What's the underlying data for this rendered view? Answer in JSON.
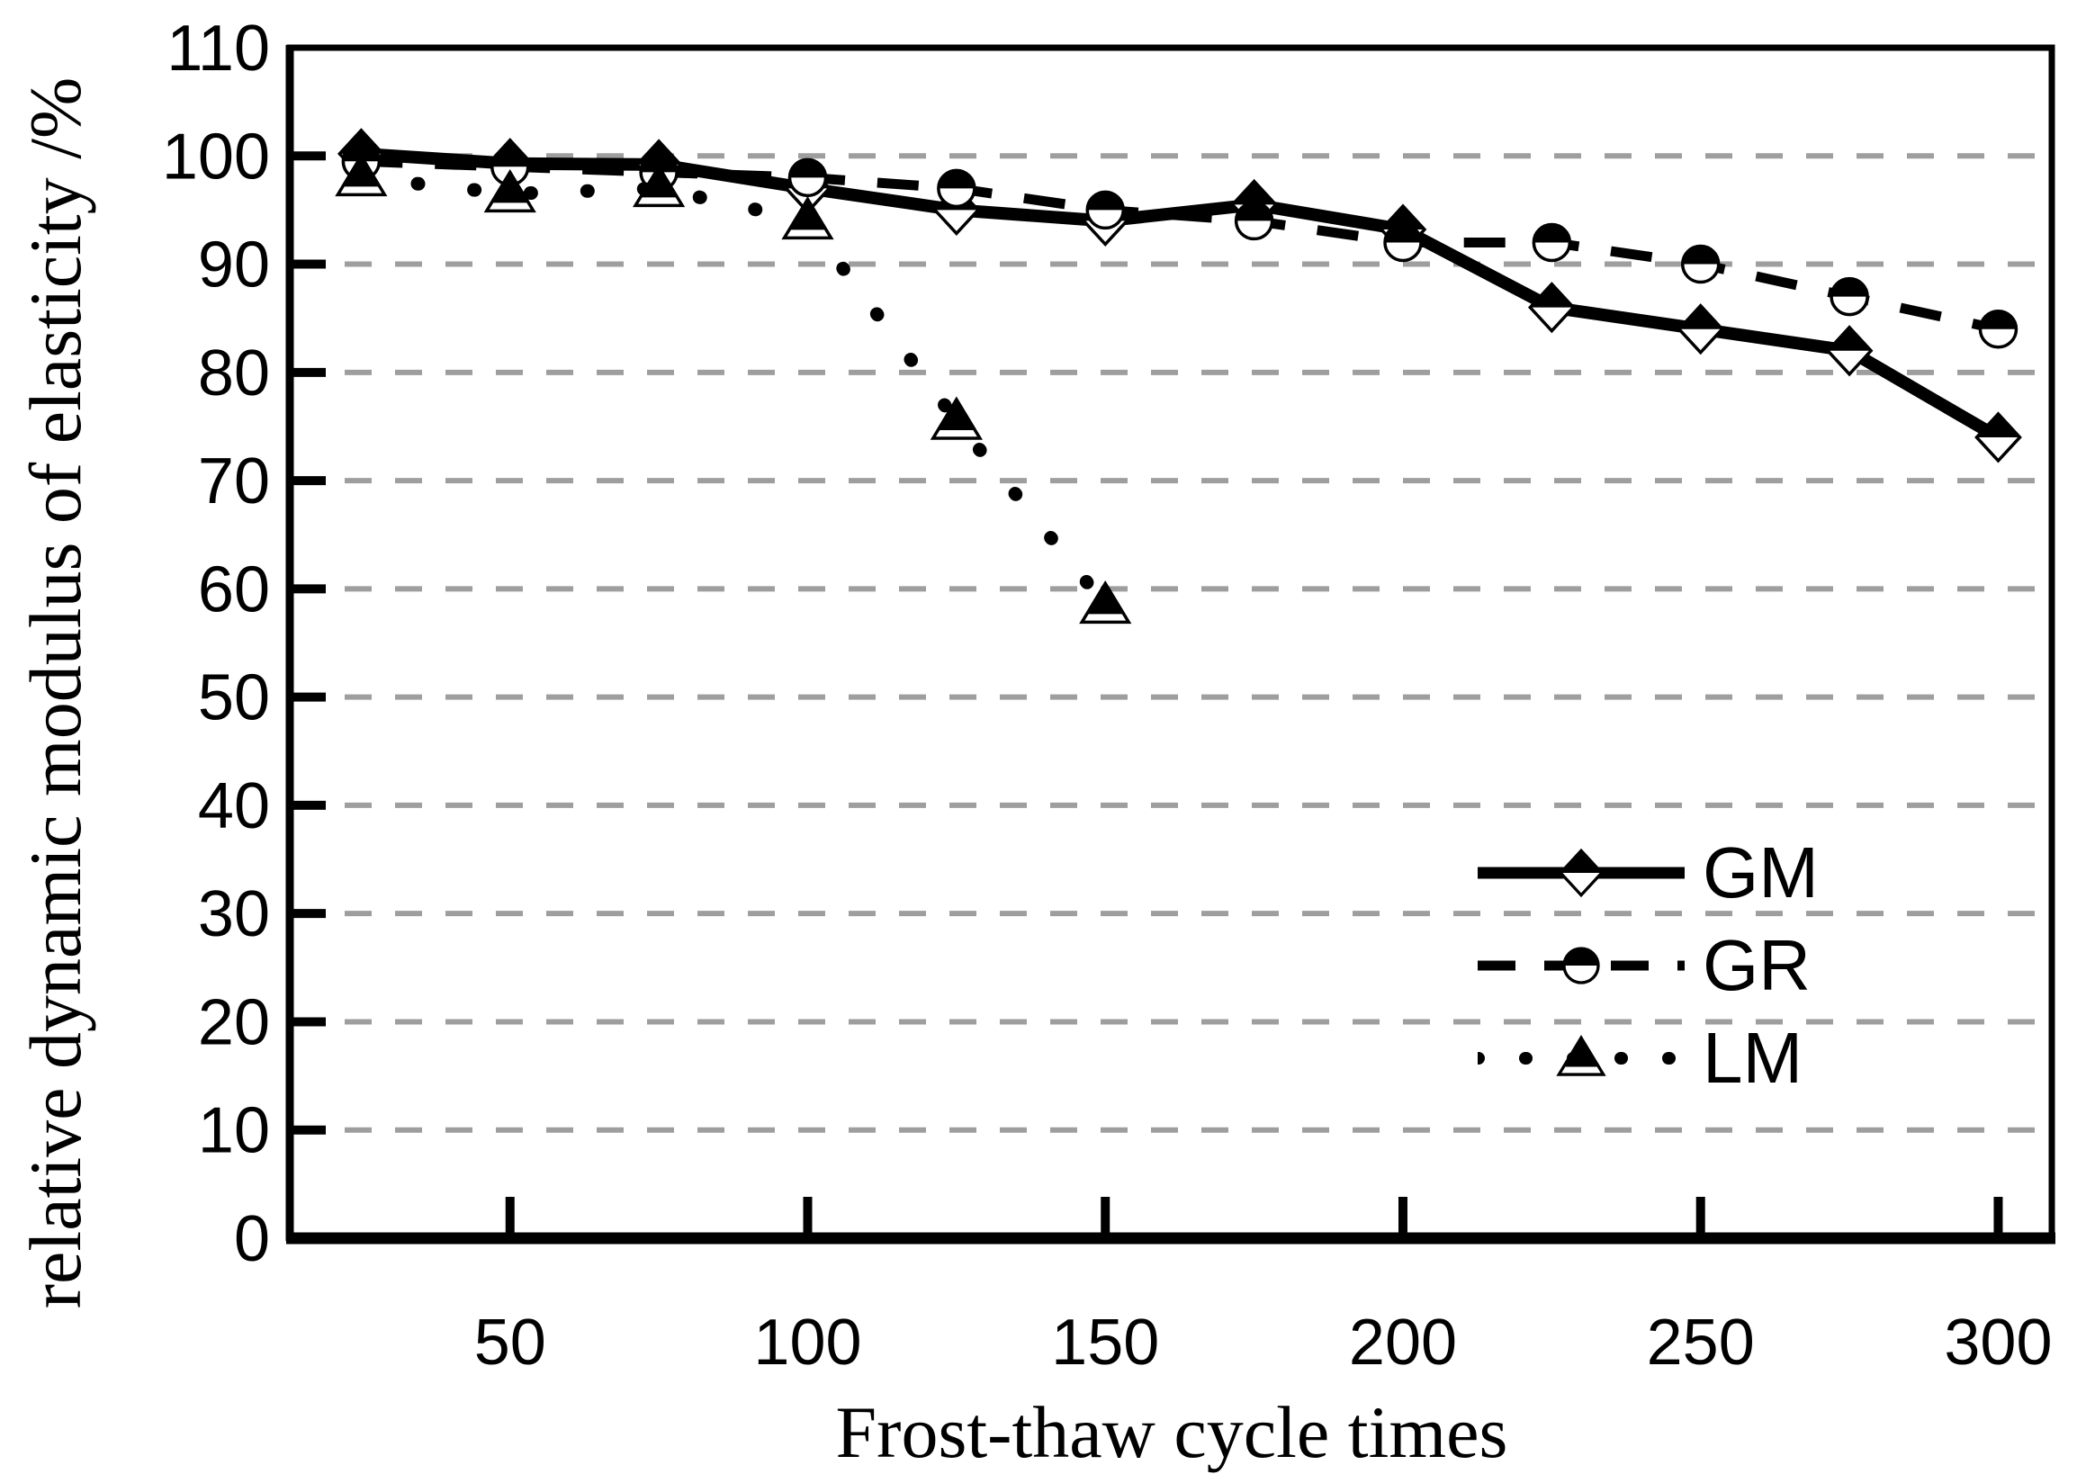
{
  "chart_data": {
    "type": "line",
    "title": "",
    "xlabel": "Frost-thaw cycle times",
    "ylabel": "relative dynamic modulus of elasticity /%",
    "xlim": [
      13,
      309
    ],
    "ylim": [
      0,
      110
    ],
    "x_ticks": [
      50,
      100,
      150,
      200,
      250,
      300
    ],
    "y_ticks": [
      0,
      10,
      20,
      30,
      40,
      50,
      60,
      70,
      80,
      90,
      100,
      110
    ],
    "gridlines": {
      "horizontal_at": [
        10,
        20,
        30,
        40,
        50,
        60,
        70,
        80,
        90,
        100
      ],
      "style": "dashed",
      "color": "#9e9e9e"
    },
    "x": [
      25,
      50,
      75,
      100,
      125,
      150,
      175,
      200,
      225,
      250,
      275,
      300
    ],
    "series": [
      {
        "name": "GM",
        "line": "solid",
        "marker": "half-diamond",
        "values": [
          100.2,
          99.3,
          99.2,
          97,
          95,
          94,
          95.5,
          93.2,
          86,
          84,
          82,
          74
        ]
      },
      {
        "name": "GR",
        "line": "dashed",
        "marker": "half-circle",
        "values": [
          99.5,
          99,
          98.5,
          98,
          97,
          95,
          94,
          92,
          92,
          90,
          87,
          84
        ]
      },
      {
        "name": "LM",
        "line": "dotted",
        "marker": "half-triangle",
        "values": [
          98,
          96.5,
          97,
          94,
          75.5,
          58.5
        ]
      }
    ],
    "legend": {
      "position": "inside-right",
      "items": [
        "GM",
        "GR",
        "LM"
      ]
    },
    "colors": {
      "line": "#000000",
      "grid": "#9e9e9e",
      "background": "#ffffff",
      "text": "#000000"
    }
  }
}
